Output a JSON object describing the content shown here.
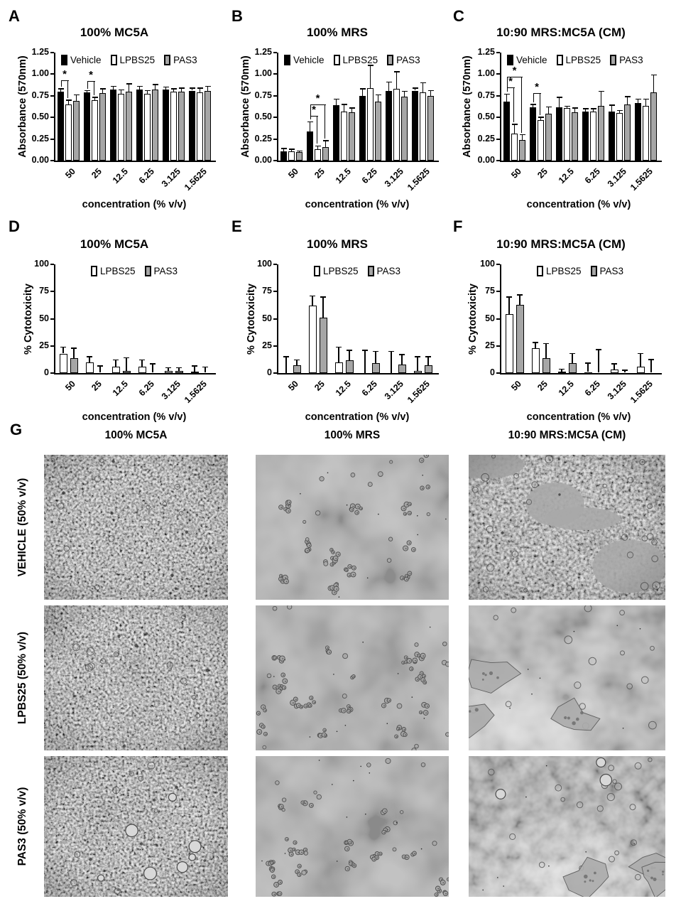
{
  "chart_data": [
    {
      "panel": "A",
      "type": "bar",
      "title": "100% MC5A",
      "ylabel": "Absorbance (570nm)",
      "xlabel": "concentration (% v/v)",
      "ylim": [
        0,
        1.25
      ],
      "ytick_labels": [
        "0.00",
        "0.25",
        "0.50",
        "0.75",
        "1.00",
        "1.25"
      ],
      "categories": [
        "50",
        "25",
        "12.5",
        "6.25",
        "3.125",
        "1.5625"
      ],
      "legend_position": "top-inside",
      "series": [
        {
          "name": "Vehicle",
          "color": "#000000",
          "values": [
            0.8,
            0.79,
            0.82,
            0.82,
            0.82,
            0.81
          ],
          "errors": [
            0.03,
            0.02,
            0.04,
            0.04,
            0.03,
            0.03
          ]
        },
        {
          "name": "LPBS25",
          "color": "#ffffff",
          "values": [
            0.65,
            0.7,
            0.77,
            0.77,
            0.8,
            0.79
          ],
          "errors": [
            0.05,
            0.03,
            0.05,
            0.04,
            0.03,
            0.05
          ]
        },
        {
          "name": "PAS3",
          "color": "#a6a6a6",
          "values": [
            0.69,
            0.78,
            0.8,
            0.82,
            0.8,
            0.81
          ],
          "errors": [
            0.07,
            0.05,
            0.09,
            0.06,
            0.04,
            0.05
          ]
        }
      ],
      "significance": [
        {
          "group": 0,
          "from": 0,
          "to": 1,
          "y": 0.93,
          "label": "*"
        },
        {
          "group": 1,
          "from": 0,
          "to": 1,
          "y": 0.92,
          "label": "*"
        }
      ]
    },
    {
      "panel": "B",
      "type": "bar",
      "title": "100% MRS",
      "ylabel": "Absorbance (570nm)",
      "xlabel": "concentration (% v/v)",
      "ylim": [
        0,
        1.25
      ],
      "ytick_labels": [
        "0.00",
        "0.25",
        "0.50",
        "0.75",
        "1.00",
        "1.25"
      ],
      "categories": [
        "50",
        "25",
        "12.5",
        "6.25",
        "3.125",
        "1.5625"
      ],
      "legend_position": "top-inside",
      "series": [
        {
          "name": "Vehicle",
          "color": "#000000",
          "values": [
            0.11,
            0.34,
            0.64,
            0.75,
            0.81,
            0.81
          ],
          "errors": [
            0.03,
            0.11,
            0.07,
            0.08,
            0.1,
            0.03
          ]
        },
        {
          "name": "LPBS25",
          "color": "#ffffff",
          "values": [
            0.11,
            0.13,
            0.57,
            0.84,
            0.83,
            0.79
          ],
          "errors": [
            0.02,
            0.04,
            0.08,
            0.26,
            0.2,
            0.11
          ]
        },
        {
          "name": "PAS3",
          "color": "#a6a6a6",
          "values": [
            0.1,
            0.16,
            0.56,
            0.68,
            0.74,
            0.75
          ],
          "errors": [
            0.01,
            0.07,
            0.05,
            0.08,
            0.06,
            0.06
          ]
        }
      ],
      "significance": [
        {
          "group": 1,
          "from": 0,
          "to": 1,
          "y": 0.52,
          "label": "*"
        },
        {
          "group": 1,
          "from": 0,
          "to": 2,
          "y": 0.65,
          "label": "*"
        }
      ]
    },
    {
      "panel": "C",
      "type": "bar",
      "title": "10:90 MRS:MC5A (CM)",
      "ylabel": "Absorbance (570nm)",
      "xlabel": "concentration (% v/v)",
      "ylim": [
        0,
        1.25
      ],
      "ytick_labels": [
        "0.00",
        "0.25",
        "0.50",
        "0.75",
        "1.00",
        "1.25"
      ],
      "categories": [
        "50",
        "25",
        "12.5",
        "6.25",
        "3.125",
        "1.5625"
      ],
      "legend_position": "top-inside",
      "series": [
        {
          "name": "Vehicle",
          "color": "#000000",
          "values": [
            0.68,
            0.62,
            0.62,
            0.57,
            0.57,
            0.67
          ],
          "errors": [
            0.09,
            0.03,
            0.11,
            0.03,
            0.07,
            0.04
          ]
        },
        {
          "name": "LPBS25",
          "color": "#ffffff",
          "values": [
            0.31,
            0.47,
            0.61,
            0.57,
            0.55,
            0.63
          ],
          "errors": [
            0.11,
            0.03,
            0.02,
            0.03,
            0.03,
            0.08
          ]
        },
        {
          "name": "PAS3",
          "color": "#a6a6a6",
          "values": [
            0.24,
            0.54,
            0.56,
            0.63,
            0.65,
            0.79
          ],
          "errors": [
            0.06,
            0.08,
            0.05,
            0.17,
            0.09,
            0.2
          ]
        }
      ],
      "significance": [
        {
          "group": 0,
          "from": 0,
          "to": 1,
          "y": 0.85,
          "label": "*"
        },
        {
          "group": 0,
          "from": 0,
          "to": 2,
          "y": 0.97,
          "label": "*"
        },
        {
          "group": 1,
          "from": 0,
          "to": 1,
          "y": 0.78,
          "label": "*"
        }
      ]
    },
    {
      "panel": "D",
      "type": "bar",
      "title": "100% MC5A",
      "ylabel": "% Cytotoxicity",
      "xlabel": "concentration (% v/v)",
      "ylim": [
        0,
        100
      ],
      "ytick_labels": [
        "0",
        "25",
        "50",
        "75",
        "100"
      ],
      "categories": [
        "50",
        "25",
        "12.5",
        "6.25",
        "3.125",
        "1.5625"
      ],
      "legend_position": "top-center",
      "series": [
        {
          "name": "LPBS25",
          "color": "#ffffff",
          "values": [
            18,
            10,
            6,
            6,
            2,
            1.5
          ],
          "errors": [
            6,
            5,
            6,
            6,
            3,
            5
          ]
        },
        {
          "name": "PAS3",
          "color": "#a6a6a6",
          "values": [
            14,
            0.5,
            2,
            0.5,
            2,
            0.5
          ],
          "errors": [
            9,
            6,
            12,
            8,
            3,
            5
          ]
        }
      ],
      "significance": []
    },
    {
      "panel": "E",
      "type": "bar",
      "title": "100% MRS",
      "ylabel": "% Cytotoxicity",
      "xlabel": "concentration (% v/v)",
      "ylim": [
        0,
        100
      ],
      "ytick_labels": [
        "0",
        "25",
        "50",
        "75",
        "100"
      ],
      "categories": [
        "50",
        "25",
        "12.5",
        "6.25",
        "3.125",
        "1.5625"
      ],
      "legend_position": "top-center",
      "series": [
        {
          "name": "LPBS25",
          "color": "#ffffff",
          "values": [
            0,
            62,
            10,
            0,
            0,
            2
          ],
          "errors": [
            15,
            9,
            14,
            21,
            20,
            13
          ]
        },
        {
          "name": "PAS3",
          "color": "#a6a6a6",
          "values": [
            7,
            51,
            12,
            9,
            8,
            7
          ],
          "errors": [
            5,
            19,
            9,
            11,
            9,
            8
          ]
        }
      ],
      "significance": []
    },
    {
      "panel": "F",
      "type": "bar",
      "title": "10:90 MRS:MC5A (CM)",
      "ylabel": "% Cytotoxicity",
      "xlabel": "concentration (% v/v)",
      "ylim": [
        0,
        100
      ],
      "ytick_labels": [
        "0",
        "25",
        "50",
        "75",
        "100"
      ],
      "categories": [
        "50",
        "25",
        "12.5",
        "6.25",
        "3.125",
        "1.5625"
      ],
      "legend_position": "top-center",
      "series": [
        {
          "name": "LPBS25",
          "color": "#ffffff",
          "values": [
            54,
            23,
            1.5,
            1,
            3.5,
            6
          ],
          "errors": [
            16,
            5,
            2,
            8,
            5,
            12
          ]
        },
        {
          "name": "PAS3",
          "color": "#a6a6a6",
          "values": [
            63,
            14,
            9,
            0.5,
            0.5,
            0.5
          ],
          "errors": [
            9,
            13,
            9,
            21,
            2,
            12
          ]
        }
      ],
      "significance": []
    }
  ],
  "micrograph_section": {
    "label": "G",
    "column_headers": [
      "100% MC5A",
      "100% MRS",
      "10:90 MRS:MC5A (CM)"
    ],
    "rows": [
      {
        "label": "VEHICLE (50% v/v)",
        "cells": [
          {
            "column": "100% MC5A",
            "appearance": "confluent-monolayer"
          },
          {
            "column": "100% MRS",
            "appearance": "sparse-clumps"
          },
          {
            "column": "10:90 MRS:MC5A (CM)",
            "appearance": "confluent-patchy"
          }
        ]
      },
      {
        "label": "LPBS25 (50% v/v)",
        "cells": [
          {
            "column": "100% MC5A",
            "appearance": "confluent-monolayer"
          },
          {
            "column": "100% MRS",
            "appearance": "sparse-clumps-dense"
          },
          {
            "column": "10:90 MRS:MC5A (CM)",
            "appearance": "sparse-spread"
          }
        ]
      },
      {
        "label": "PAS3 (50% v/v)",
        "cells": [
          {
            "column": "100% MC5A",
            "appearance": "confluent-bubbles"
          },
          {
            "column": "100% MRS",
            "appearance": "sparse-clumps-dense"
          },
          {
            "column": "10:90 MRS:MC5A (CM)",
            "appearance": "sparse-spread-bright"
          }
        ]
      }
    ]
  }
}
